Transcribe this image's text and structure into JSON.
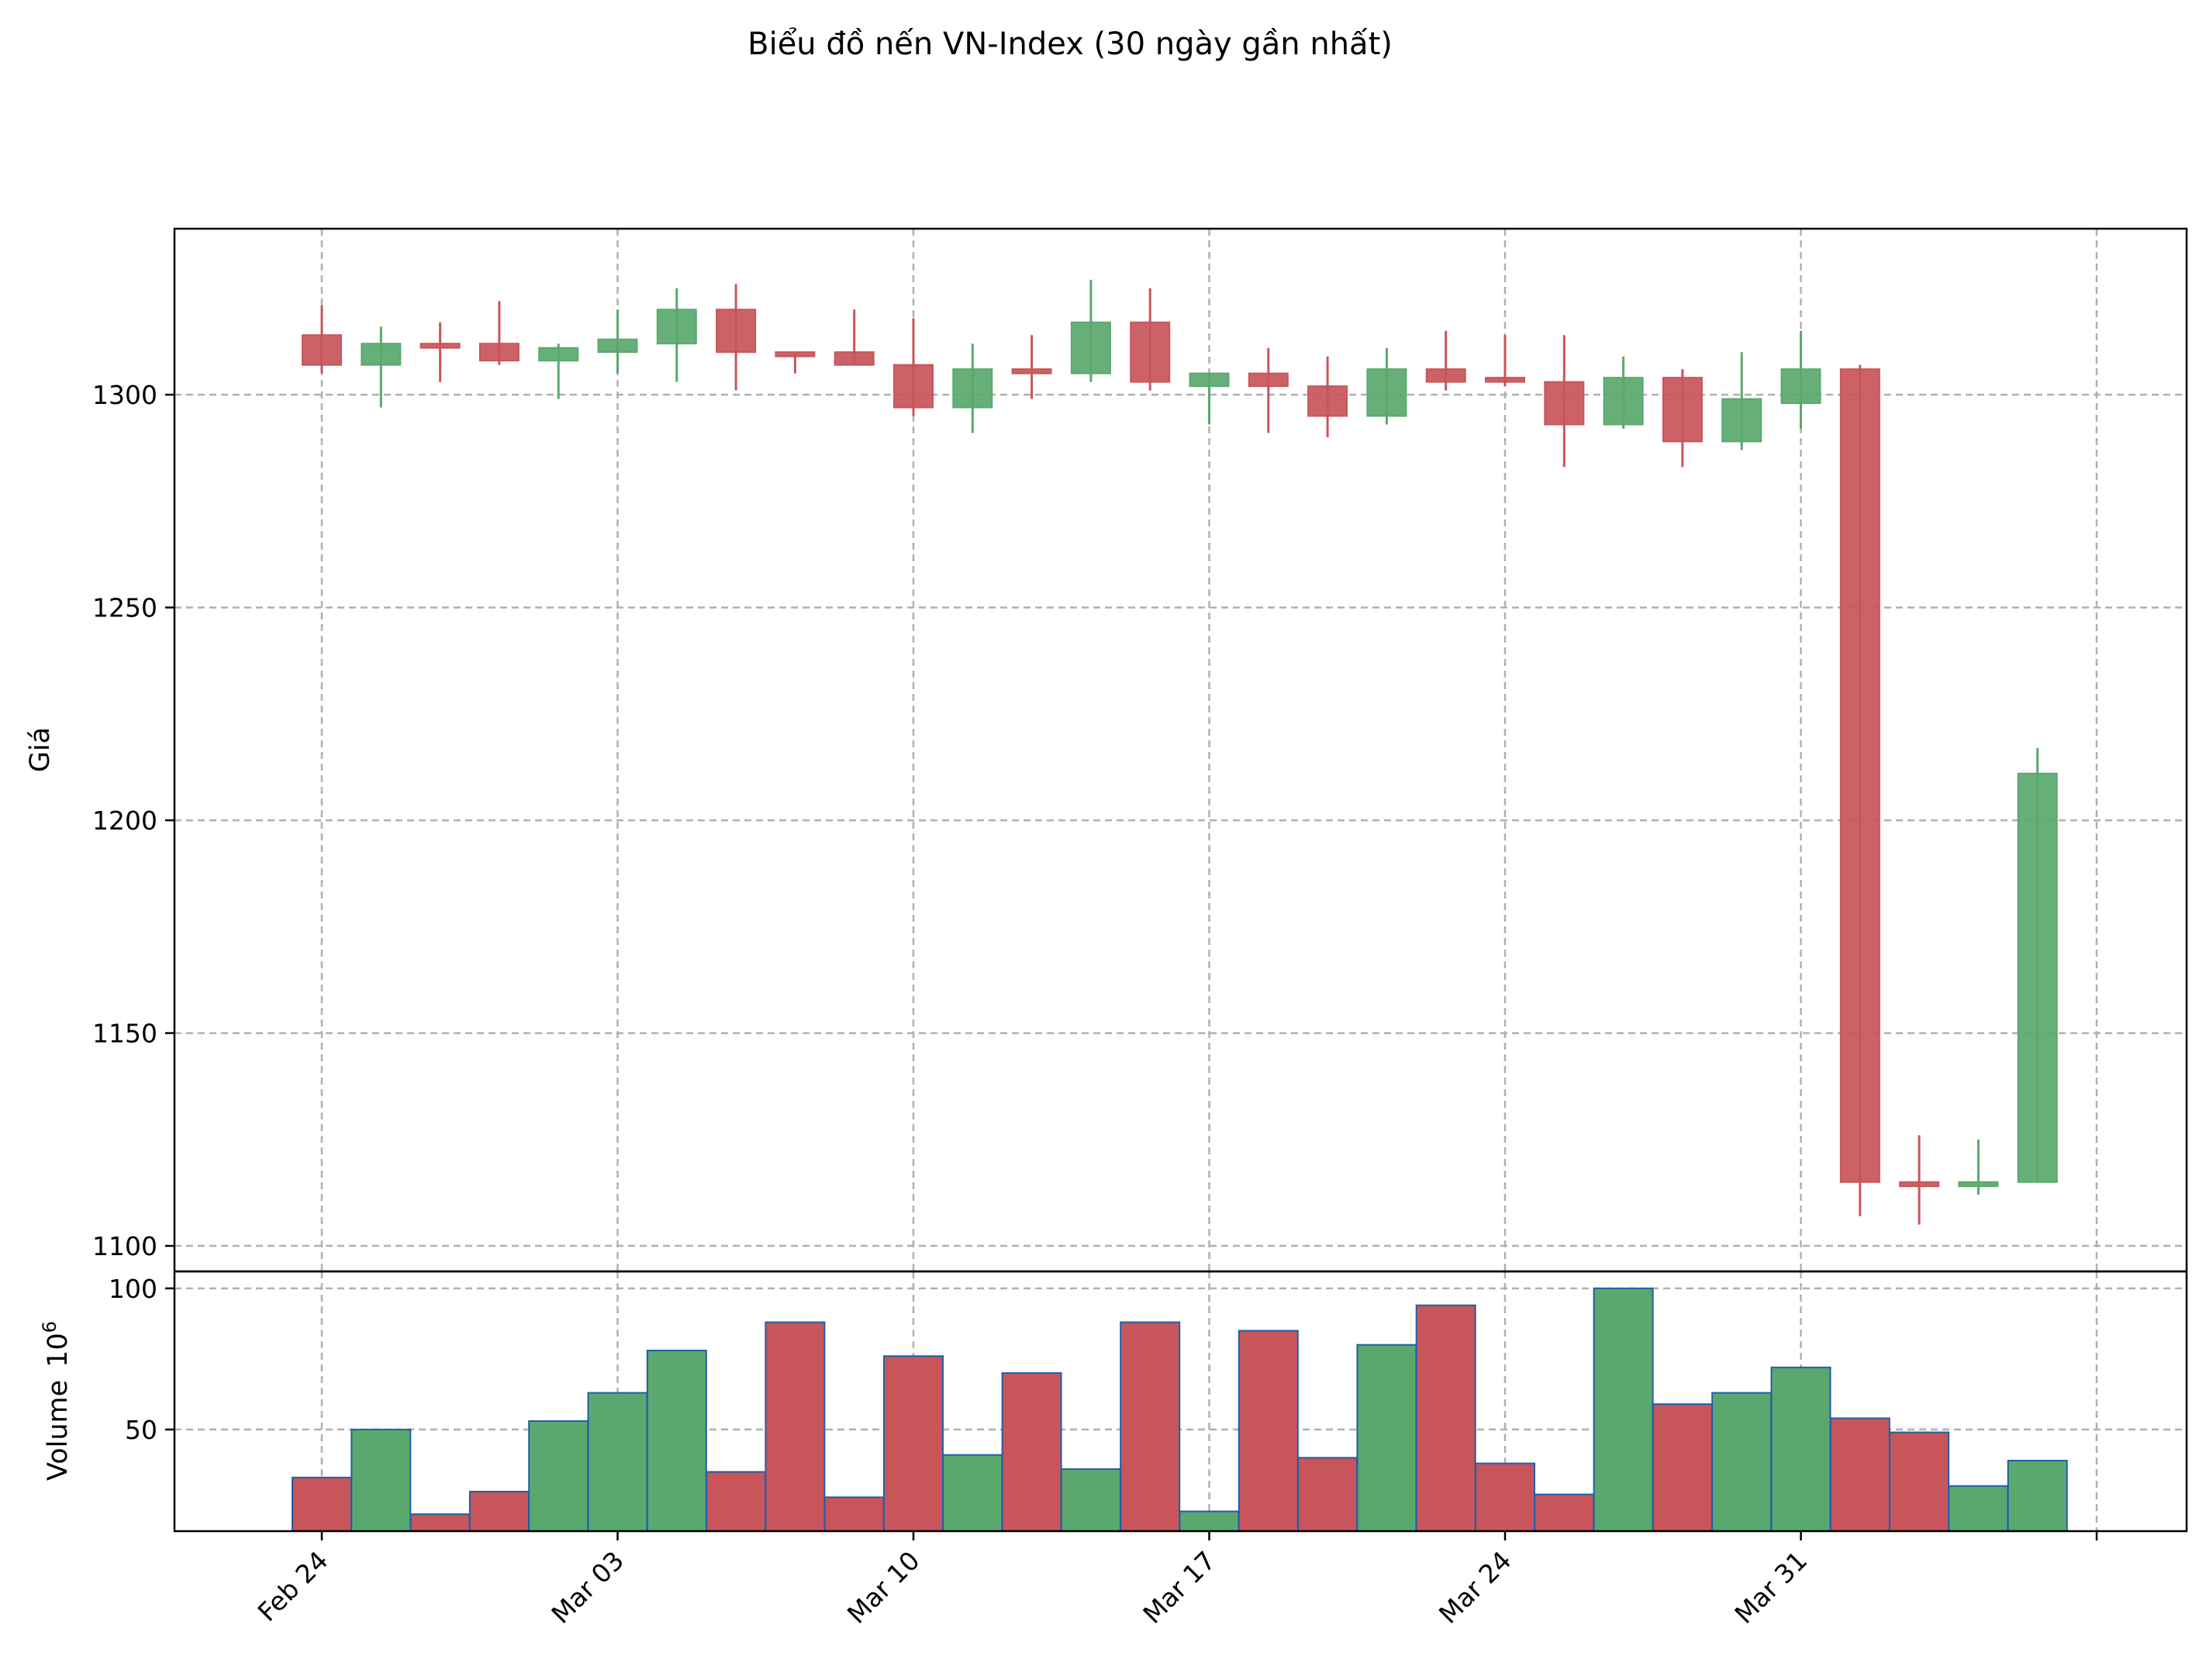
{
  "chart_data": {
    "type": "candlestick",
    "title": "Biểu đồ nến VN-Index (30 ngày gần nhất)",
    "ylabel": "Giá",
    "volume_ylabel": "Volume",
    "volume_exponent": "10",
    "volume_exponent_power": "6",
    "ylim": [
      1094,
      1339
    ],
    "volume_ylim": [
      14,
      106
    ],
    "x_ticks": [
      "Feb 24",
      "Mar 03",
      "Mar 10",
      "Mar 17",
      "Mar 24",
      "Mar 31"
    ],
    "y_ticks": [
      1100,
      1150,
      1200,
      1250,
      1300
    ],
    "volume_ticks": [
      50,
      100
    ],
    "grid": true,
    "colors": {
      "up": "#5aa86e",
      "down": "#c8555a",
      "edge": "#1f5fa8"
    },
    "candles": [
      {
        "date": "Feb 24",
        "open": 1314,
        "high": 1321,
        "low": 1305,
        "close": 1307,
        "volume": 33
      },
      {
        "date": "Feb 25",
        "open": 1307,
        "high": 1316,
        "low": 1297,
        "close": 1312,
        "volume": 50
      },
      {
        "date": "Feb 26",
        "open": 1312,
        "high": 1317,
        "low": 1303,
        "close": 1311,
        "volume": 20
      },
      {
        "date": "Feb 27",
        "open": 1312,
        "high": 1322,
        "low": 1307,
        "close": 1308,
        "volume": 28
      },
      {
        "date": "Feb 28",
        "open": 1308,
        "high": 1312,
        "low": 1299,
        "close": 1311,
        "volume": 53
      },
      {
        "date": "Mar 03",
        "open": 1310,
        "high": 1320,
        "low": 1305,
        "close": 1313,
        "volume": 63
      },
      {
        "date": "Mar 04",
        "open": 1312,
        "high": 1325,
        "low": 1303,
        "close": 1320,
        "volume": 78
      },
      {
        "date": "Mar 05",
        "open": 1320,
        "high": 1326,
        "low": 1301,
        "close": 1310,
        "volume": 35
      },
      {
        "date": "Mar 06",
        "open": 1310,
        "high": 1310,
        "low": 1305,
        "close": 1309,
        "volume": 88
      },
      {
        "date": "Mar 07",
        "open": 1310,
        "high": 1320,
        "low": 1307,
        "close": 1307,
        "volume": 26
      },
      {
        "date": "Mar 10",
        "open": 1307,
        "high": 1318,
        "low": 1295,
        "close": 1297,
        "volume": 76
      },
      {
        "date": "Mar 11",
        "open": 1297,
        "high": 1312,
        "low": 1291,
        "close": 1306,
        "volume": 41
      },
      {
        "date": "Mar 12",
        "open": 1306,
        "high": 1314,
        "low": 1299,
        "close": 1305,
        "volume": 70
      },
      {
        "date": "Mar 13",
        "open": 1305,
        "high": 1327,
        "low": 1303,
        "close": 1317,
        "volume": 36
      },
      {
        "date": "Mar 14",
        "open": 1317,
        "high": 1325,
        "low": 1301,
        "close": 1303,
        "volume": 88
      },
      {
        "date": "Mar 17",
        "open": 1302,
        "high": 1305,
        "low": 1293,
        "close": 1305,
        "volume": 21
      },
      {
        "date": "Mar 18",
        "open": 1305,
        "high": 1311,
        "low": 1291,
        "close": 1302,
        "volume": 85
      },
      {
        "date": "Mar 19",
        "open": 1302,
        "high": 1309,
        "low": 1290,
        "close": 1295,
        "volume": 40
      },
      {
        "date": "Mar 20",
        "open": 1295,
        "high": 1311,
        "low": 1293,
        "close": 1306,
        "volume": 80
      },
      {
        "date": "Mar 21",
        "open": 1306,
        "high": 1315,
        "low": 1301,
        "close": 1303,
        "volume": 94
      },
      {
        "date": "Mar 24",
        "open": 1304,
        "high": 1314,
        "low": 1302,
        "close": 1303,
        "volume": 38
      },
      {
        "date": "Mar 25",
        "open": 1303,
        "high": 1314,
        "low": 1283,
        "close": 1293,
        "volume": 27
      },
      {
        "date": "Mar 26",
        "open": 1293,
        "high": 1309,
        "low": 1292,
        "close": 1304,
        "volume": 100
      },
      {
        "date": "Mar 27",
        "open": 1304,
        "high": 1306,
        "low": 1283,
        "close": 1289,
        "volume": 59
      },
      {
        "date": "Mar 28",
        "open": 1289,
        "high": 1310,
        "low": 1287,
        "close": 1299,
        "volume": 63
      },
      {
        "date": "Mar 31",
        "open": 1298,
        "high": 1315,
        "low": 1292,
        "close": 1306,
        "volume": 72
      },
      {
        "date": "Apr 01",
        "open": 1306,
        "high": 1307,
        "low": 1107,
        "close": 1115,
        "volume": 54
      },
      {
        "date": "Apr 02",
        "open": 1115,
        "high": 1126,
        "low": 1105,
        "close": 1114,
        "volume": 49
      },
      {
        "date": "Apr 03",
        "open": 1114,
        "high": 1125,
        "low": 1112,
        "close": 1115,
        "volume": 30
      },
      {
        "date": "Apr 04",
        "open": 1115,
        "high": 1217,
        "low": 1115,
        "close": 1211,
        "volume": 39
      }
    ]
  }
}
